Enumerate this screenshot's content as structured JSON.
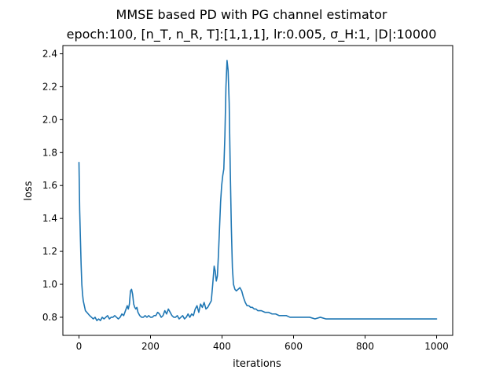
{
  "chart_data": {
    "type": "line",
    "title": "MMSE based PD with PG channel estimator",
    "subtitle": "epoch:100, [n_T, n_R, T]:[1,1,1], lr:0.005, σ_H:1, |D|:10000",
    "xlabel": "iterations",
    "ylabel": "loss",
    "xlim": [
      -45,
      1045
    ],
    "ylim": [
      0.69,
      2.45
    ],
    "xticks": [
      0,
      200,
      400,
      600,
      800,
      1000
    ],
    "yticks": [
      0.8,
      1.0,
      1.2,
      1.4,
      1.6,
      1.8,
      2.0,
      2.2,
      2.4
    ],
    "xtick_labels": [
      "0",
      "200",
      "400",
      "600",
      "800",
      "1000"
    ],
    "ytick_labels": [
      "0.8",
      "1.0",
      "1.2",
      "1.4",
      "1.6",
      "1.8",
      "2.0",
      "2.2",
      "2.4"
    ],
    "grid": false,
    "legend": "none",
    "color": "#1f77b4",
    "series": [
      {
        "x": [
          0,
          2,
          4,
          6,
          8,
          10,
          12,
          15,
          18,
          22,
          26,
          30,
          35,
          40,
          45,
          50,
          55,
          60,
          65,
          70,
          75,
          80,
          85,
          90,
          95,
          100,
          105,
          110,
          115,
          120,
          125,
          130,
          135,
          138,
          141,
          144,
          147,
          150,
          153,
          156,
          159,
          162,
          165,
          170,
          175,
          180,
          185,
          190,
          195,
          200,
          205,
          210,
          215,
          220,
          225,
          230,
          235,
          240,
          245,
          250,
          255,
          260,
          265,
          270,
          275,
          280,
          285,
          290,
          295,
          300,
          305,
          310,
          315,
          320,
          325,
          330,
          335,
          340,
          345,
          350,
          355,
          360,
          365,
          370,
          374,
          378,
          381,
          384,
          387,
          390,
          393,
          396,
          399,
          402,
          405,
          408,
          411,
          414,
          417,
          420,
          423,
          426,
          429,
          432,
          436,
          440,
          445,
          450,
          455,
          460,
          465,
          470,
          475,
          480,
          485,
          490,
          495,
          500,
          510,
          520,
          530,
          540,
          550,
          560,
          570,
          580,
          590,
          600,
          615,
          630,
          645,
          660,
          675,
          690,
          705,
          720,
          735,
          750,
          765,
          780,
          795,
          810,
          825,
          840,
          855,
          870,
          885,
          900,
          915,
          930,
          945,
          960,
          975,
          990,
          1000
        ],
        "y": [
          1.74,
          1.45,
          1.28,
          1.12,
          1.0,
          0.94,
          0.9,
          0.87,
          0.84,
          0.83,
          0.82,
          0.81,
          0.8,
          0.79,
          0.8,
          0.78,
          0.79,
          0.78,
          0.8,
          0.79,
          0.8,
          0.81,
          0.79,
          0.8,
          0.8,
          0.81,
          0.8,
          0.79,
          0.8,
          0.82,
          0.81,
          0.84,
          0.87,
          0.85,
          0.88,
          0.96,
          0.97,
          0.94,
          0.88,
          0.86,
          0.85,
          0.86,
          0.83,
          0.81,
          0.8,
          0.8,
          0.81,
          0.8,
          0.81,
          0.8,
          0.8,
          0.81,
          0.81,
          0.83,
          0.82,
          0.8,
          0.81,
          0.84,
          0.82,
          0.85,
          0.83,
          0.81,
          0.8,
          0.8,
          0.81,
          0.79,
          0.8,
          0.81,
          0.79,
          0.8,
          0.82,
          0.8,
          0.82,
          0.81,
          0.85,
          0.87,
          0.83,
          0.88,
          0.86,
          0.89,
          0.85,
          0.86,
          0.88,
          0.9,
          1.0,
          1.11,
          1.08,
          1.02,
          1.05,
          1.18,
          1.34,
          1.5,
          1.6,
          1.66,
          1.7,
          1.9,
          2.2,
          2.36,
          2.3,
          2.1,
          1.7,
          1.35,
          1.1,
          1.0,
          0.97,
          0.96,
          0.97,
          0.98,
          0.96,
          0.92,
          0.89,
          0.87,
          0.87,
          0.86,
          0.86,
          0.85,
          0.85,
          0.84,
          0.84,
          0.83,
          0.83,
          0.82,
          0.82,
          0.81,
          0.81,
          0.81,
          0.8,
          0.8,
          0.8,
          0.8,
          0.8,
          0.79,
          0.8,
          0.79,
          0.79,
          0.79,
          0.79,
          0.79,
          0.79,
          0.79,
          0.79,
          0.79,
          0.79,
          0.79,
          0.79,
          0.79,
          0.79,
          0.79,
          0.79,
          0.79,
          0.79,
          0.79,
          0.79,
          0.79,
          0.79
        ]
      }
    ]
  }
}
